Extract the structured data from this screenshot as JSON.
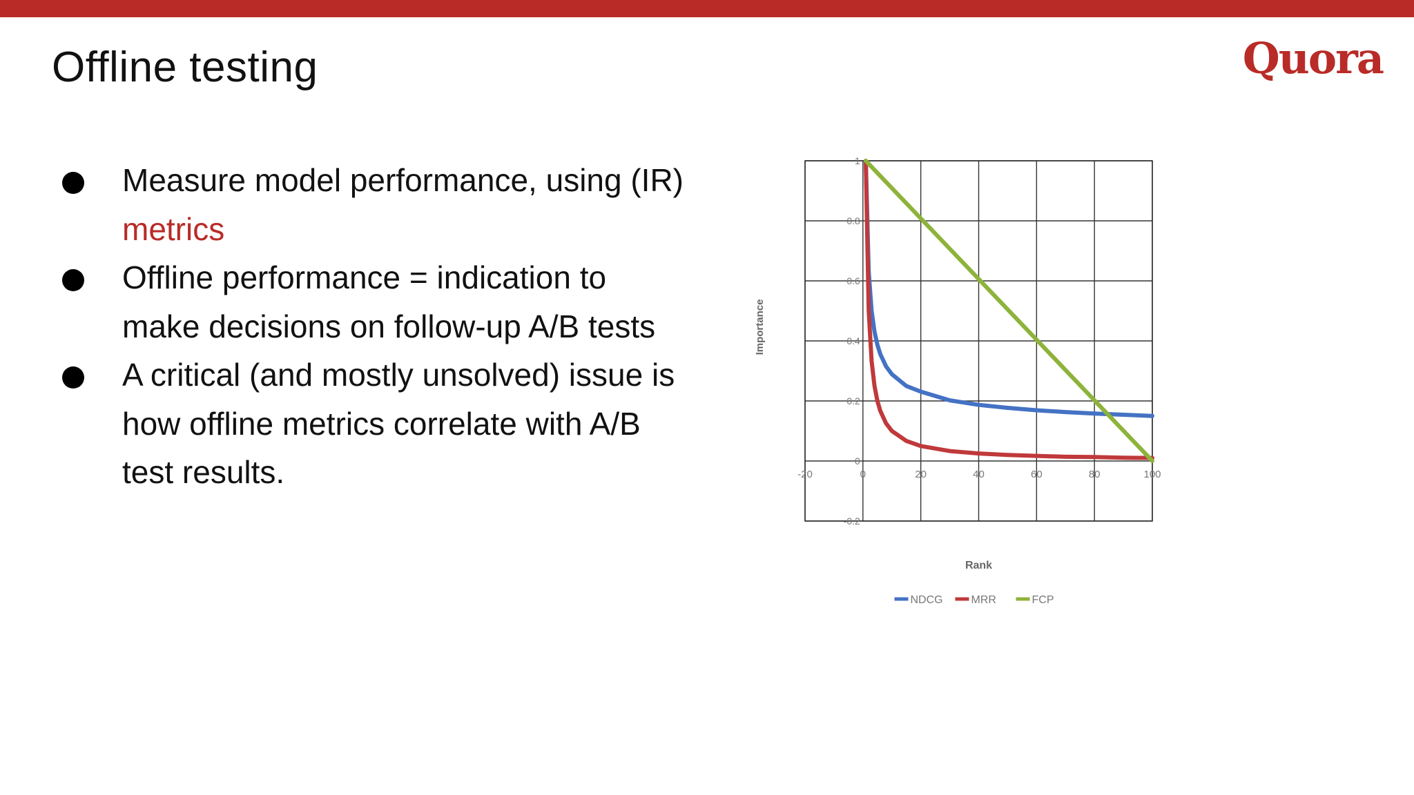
{
  "slide": {
    "title": "Offline testing",
    "logo_text": "Quora",
    "accent_color": "#b92b27",
    "bullets": [
      {
        "text_before": "Measure model performance, using (IR) ",
        "highlight": "metrics",
        "text_after": ""
      },
      {
        "text_before": "Offline performance = indication to make decisions on follow-up A/B tests",
        "highlight": "",
        "text_after": ""
      },
      {
        "text_before": "A critical (and mostly unsolved) issue is how offline metrics correlate with A/B test results.",
        "highlight": "",
        "text_after": ""
      }
    ]
  },
  "chart_data": {
    "type": "line",
    "title": "",
    "xlabel": "Rank",
    "ylabel": "Importance",
    "xlim": [
      -20,
      100
    ],
    "ylim": [
      -0.2,
      1
    ],
    "xticks": [
      -20,
      0,
      20,
      40,
      60,
      80,
      100
    ],
    "yticks": [
      -0.2,
      0,
      0.2,
      0.4,
      0.6,
      0.8,
      1
    ],
    "xtick_labels": [
      "-20",
      "0",
      "20",
      "40",
      "60",
      "80",
      "100"
    ],
    "ytick_labels": [
      "-0.2",
      "0",
      "0.2",
      "0.4",
      "0.6",
      "0.8",
      "1"
    ],
    "grid": true,
    "legend_position": "bottom",
    "series": [
      {
        "name": "NDCG",
        "color": "#4472c4",
        "x": [
          1,
          2,
          3,
          4,
          5,
          6,
          8,
          10,
          15,
          20,
          30,
          40,
          50,
          60,
          70,
          80,
          90,
          100
        ],
        "y": [
          1.0,
          0.631,
          0.5,
          0.431,
          0.387,
          0.356,
          0.315,
          0.289,
          0.25,
          0.231,
          0.202,
          0.187,
          0.177,
          0.169,
          0.163,
          0.158,
          0.154,
          0.15
        ]
      },
      {
        "name": "MRR",
        "color": "#c0393b",
        "x": [
          1,
          2,
          3,
          4,
          5,
          6,
          8,
          10,
          15,
          20,
          30,
          40,
          50,
          60,
          70,
          80,
          90,
          100
        ],
        "y": [
          1.0,
          0.5,
          0.333,
          0.25,
          0.2,
          0.167,
          0.125,
          0.1,
          0.067,
          0.05,
          0.033,
          0.025,
          0.02,
          0.017,
          0.014,
          0.013,
          0.011,
          0.01
        ]
      },
      {
        "name": "FCP",
        "color": "#8db33a",
        "x": [
          1,
          100
        ],
        "y": [
          1.0,
          0.0
        ]
      }
    ]
  }
}
